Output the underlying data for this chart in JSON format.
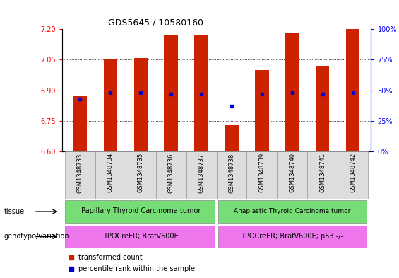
{
  "title": "GDS5645 / 10580160",
  "samples": [
    "GSM1348733",
    "GSM1348734",
    "GSM1348735",
    "GSM1348736",
    "GSM1348737",
    "GSM1348738",
    "GSM1348739",
    "GSM1348740",
    "GSM1348741",
    "GSM1348742"
  ],
  "transformed_count": [
    6.87,
    7.05,
    7.06,
    7.17,
    7.17,
    6.73,
    7.0,
    7.18,
    7.02,
    7.2
  ],
  "percentile_rank_pct": [
    43,
    48,
    48,
    47,
    47,
    37,
    47,
    48,
    47,
    48
  ],
  "bar_bottom": 6.6,
  "ylim_left": [
    6.6,
    7.2
  ],
  "ylim_right": [
    0,
    100
  ],
  "yticks_left": [
    6.6,
    6.75,
    6.9,
    7.05,
    7.2
  ],
  "yticks_right": [
    0,
    25,
    50,
    75,
    100
  ],
  "bar_color": "#CC2200",
  "dot_color": "#0000CC",
  "tissue_labels": [
    "Papillary Thyroid Carcinoma tumor",
    "Anaplastic Thyroid Carcinoma tumor"
  ],
  "tissue_color": "#77DD77",
  "genotype_labels": [
    "TPOCreER; BrafV600E",
    "TPOCreER; BrafV600E; p53 -/-"
  ],
  "genotype_color": "#EE77EE",
  "group1_count": 5,
  "group2_count": 5,
  "legend_red": "transformed count",
  "legend_blue": "percentile rank within the sample",
  "tissue_row_label": "tissue",
  "genotype_row_label": "genotype/variation",
  "bar_width": 0.45
}
